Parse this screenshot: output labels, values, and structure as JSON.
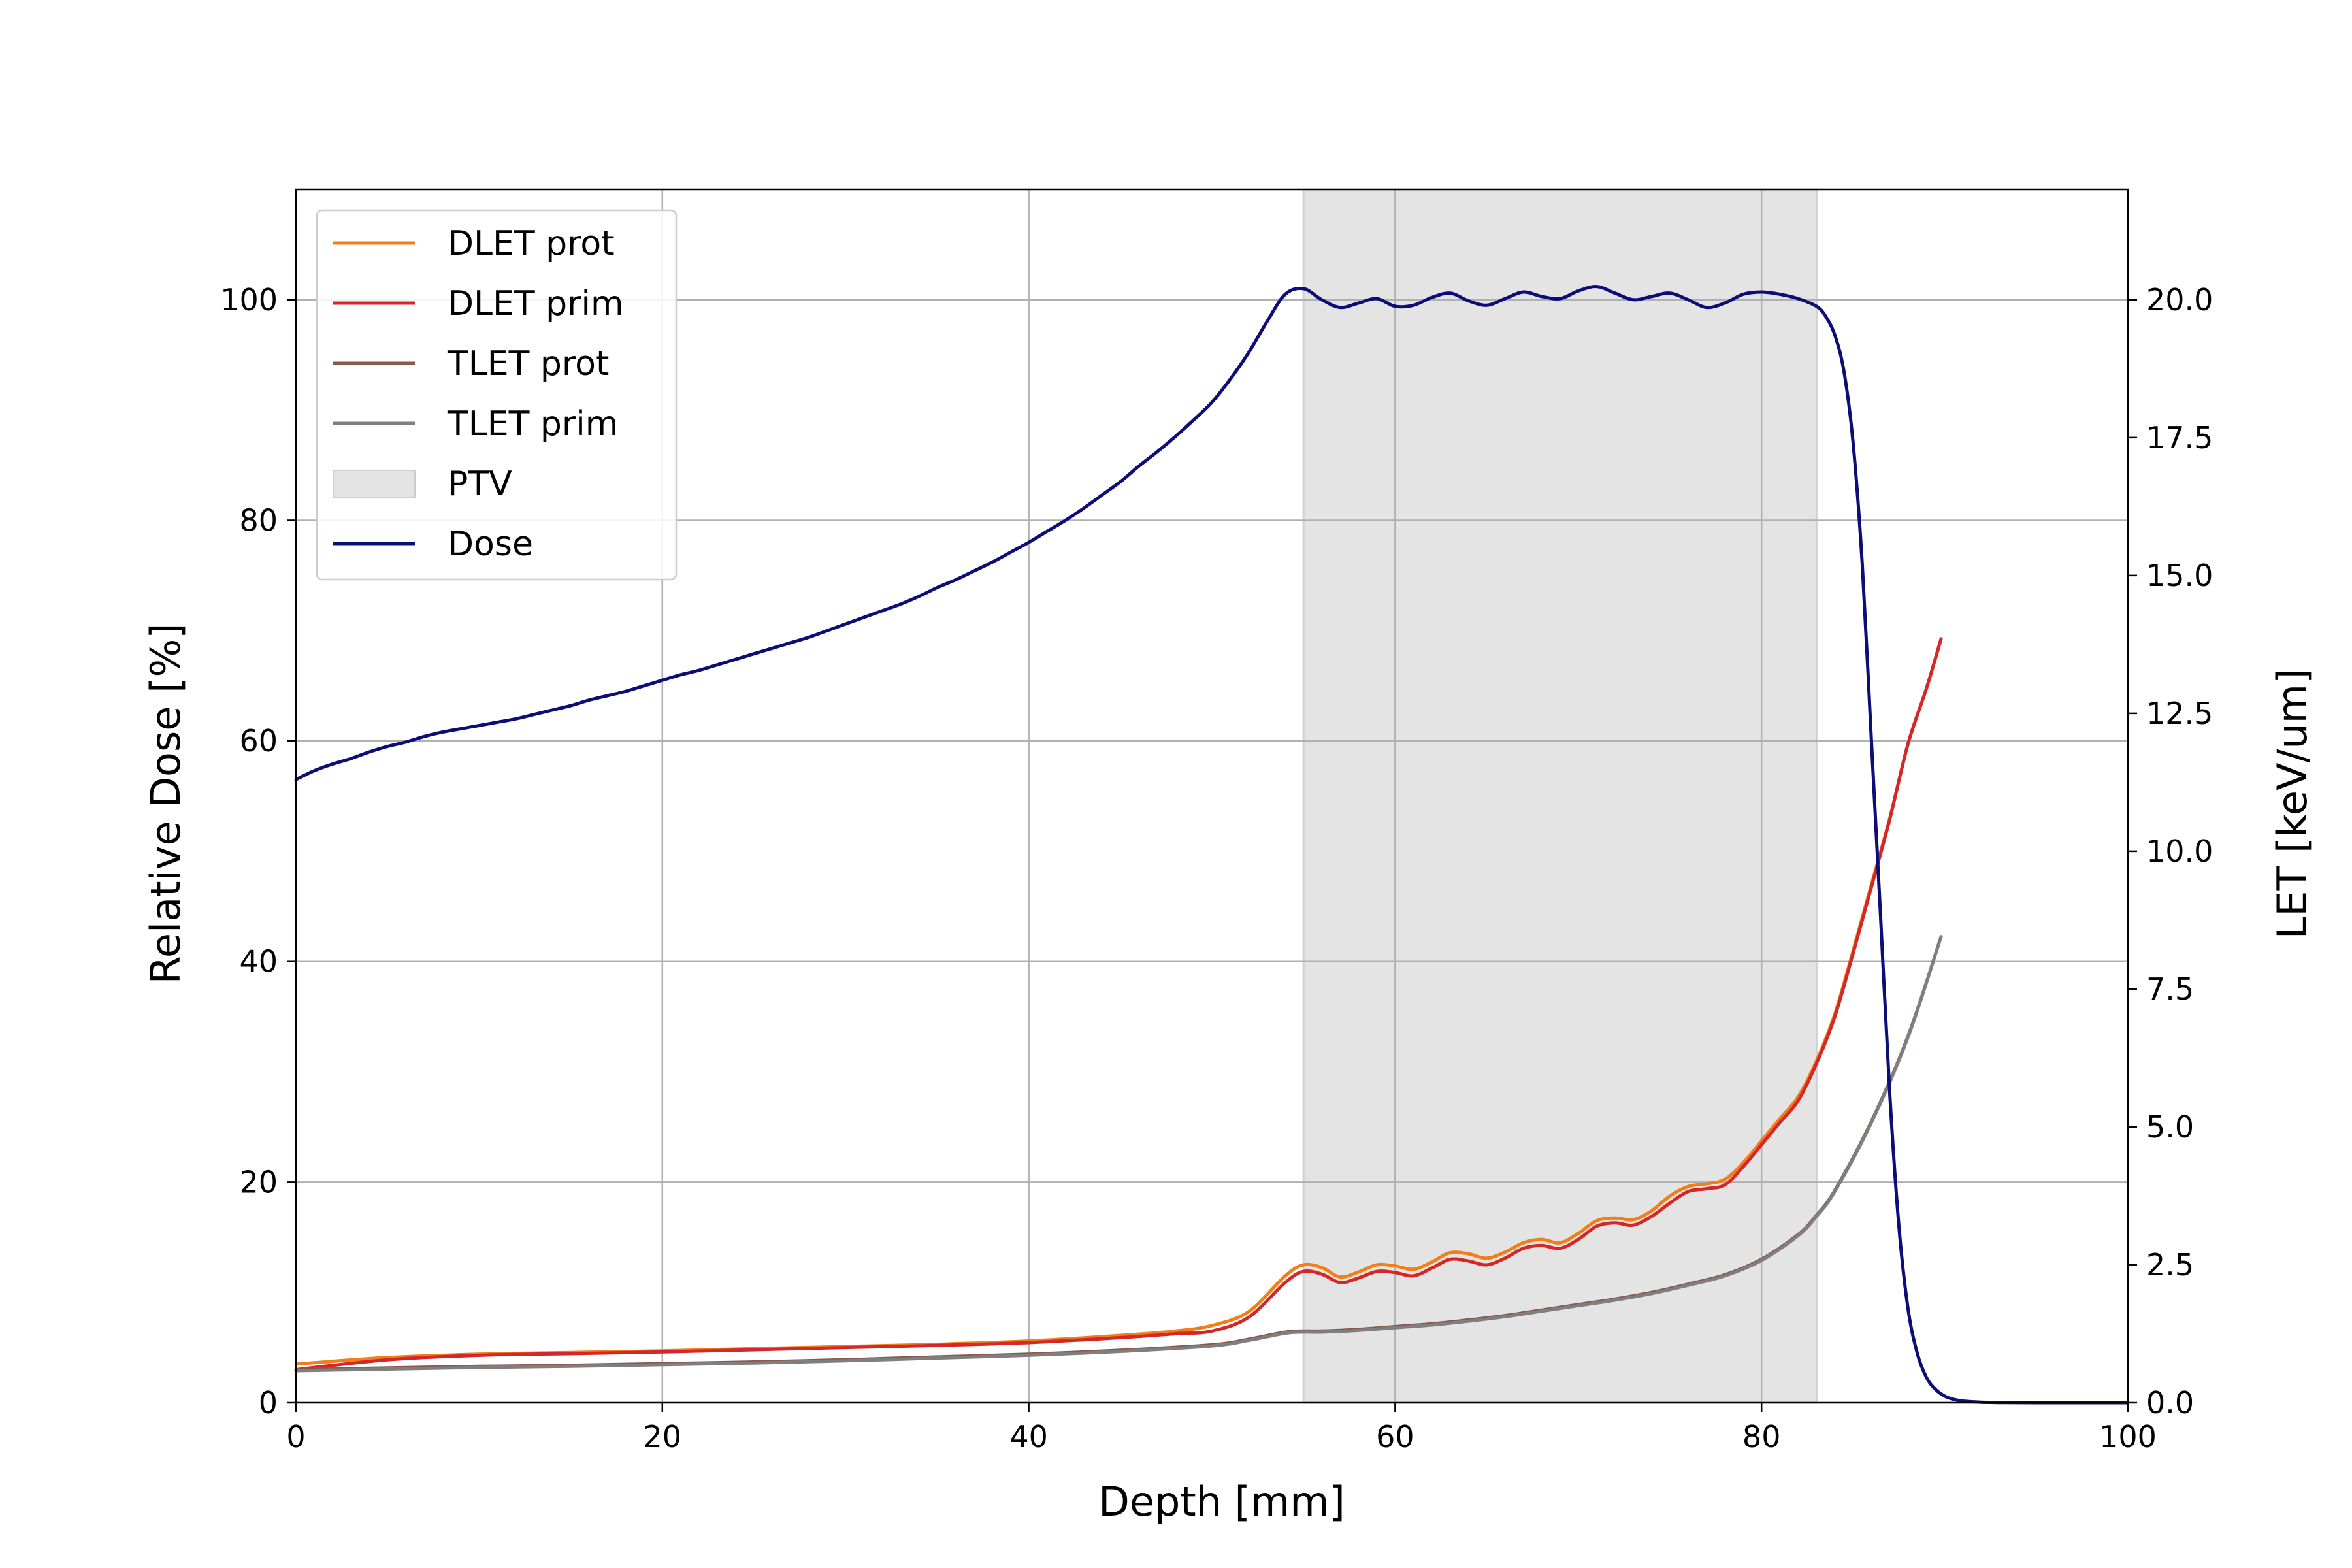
{
  "chart_data": {
    "type": "line",
    "title": "",
    "xlabel": "Depth [mm]",
    "ylabel": "Relative Dose [%]",
    "y2label": "LET [keV/um]",
    "xlim": [
      0,
      100
    ],
    "ylim": [
      0,
      110
    ],
    "y2lim": [
      0,
      22
    ],
    "xticks": [
      0,
      20,
      40,
      60,
      80,
      100
    ],
    "yticks": [
      0,
      20,
      40,
      60,
      80,
      100
    ],
    "y2ticks": [
      "0.0",
      "2.5",
      "5.0",
      "7.5",
      "10.0",
      "12.5",
      "15.0",
      "17.5",
      "20.0"
    ],
    "grid": true,
    "legend_position": "top-left",
    "ptv": {
      "name": "PTV",
      "x_range": [
        55,
        83
      ],
      "color": "#e4e4e4"
    },
    "series": [
      {
        "name": "DLET prot",
        "axis": "right",
        "color": "#f07f1a",
        "x": [
          0,
          5,
          10,
          15,
          20,
          25,
          30,
          35,
          40,
          45,
          48,
          50,
          52,
          54,
          55,
          56,
          57,
          58,
          59,
          60,
          61,
          62,
          63,
          64,
          65,
          66,
          67,
          68,
          69,
          70,
          71,
          72,
          73,
          74,
          75,
          76,
          77,
          78,
          79,
          80,
          81,
          82,
          83,
          84,
          85,
          86,
          87,
          88,
          89,
          89.8
        ],
        "y": [
          0.7,
          0.82,
          0.88,
          0.91,
          0.94,
          0.98,
          1.02,
          1.06,
          1.12,
          1.22,
          1.3,
          1.4,
          1.65,
          2.3,
          2.5,
          2.45,
          2.28,
          2.37,
          2.5,
          2.48,
          2.42,
          2.55,
          2.72,
          2.7,
          2.62,
          2.73,
          2.9,
          2.96,
          2.9,
          3.07,
          3.3,
          3.35,
          3.32,
          3.48,
          3.75,
          3.92,
          3.97,
          4.05,
          4.35,
          4.75,
          5.15,
          5.55,
          6.2,
          7.05,
          8.2,
          9.4,
          10.6,
          11.95,
          12.95,
          13.85
        ]
      },
      {
        "name": "DLET prim",
        "axis": "right",
        "color": "#d62728",
        "x": [
          0,
          5,
          10,
          15,
          20,
          25,
          30,
          35,
          40,
          45,
          48,
          50,
          52,
          54,
          55,
          56,
          57,
          58,
          59,
          60,
          61,
          62,
          63,
          64,
          65,
          66,
          67,
          68,
          69,
          70,
          71,
          72,
          73,
          74,
          75,
          76,
          77,
          78,
          79,
          80,
          81,
          82,
          83,
          84,
          85,
          86,
          87,
          88,
          89,
          89.8
        ],
        "y": [
          0.6,
          0.78,
          0.86,
          0.89,
          0.92,
          0.96,
          1.0,
          1.04,
          1.09,
          1.18,
          1.25,
          1.3,
          1.55,
          2.18,
          2.38,
          2.33,
          2.18,
          2.26,
          2.38,
          2.36,
          2.3,
          2.44,
          2.6,
          2.57,
          2.5,
          2.62,
          2.8,
          2.85,
          2.8,
          2.96,
          3.2,
          3.26,
          3.22,
          3.38,
          3.62,
          3.83,
          3.88,
          3.95,
          4.28,
          4.68,
          5.08,
          5.48,
          6.15,
          7.0,
          8.15,
          9.35,
          10.58,
          11.95,
          12.95,
          13.85
        ]
      },
      {
        "name": "TLET prot",
        "axis": "right",
        "color": "#8c564b",
        "x": [
          0,
          5,
          10,
          15,
          20,
          25,
          30,
          35,
          40,
          45,
          50,
          52,
          54,
          55,
          56,
          58,
          60,
          62,
          64,
          66,
          68,
          70,
          72,
          74,
          76,
          78,
          80,
          82,
          83,
          84,
          86,
          88,
          89.8
        ],
        "y": [
          0.6,
          0.63,
          0.66,
          0.68,
          0.71,
          0.74,
          0.78,
          0.83,
          0.88,
          0.95,
          1.05,
          1.15,
          1.28,
          1.3,
          1.3,
          1.33,
          1.38,
          1.43,
          1.5,
          1.58,
          1.68,
          1.78,
          1.88,
          2.0,
          2.15,
          2.32,
          2.6,
          3.05,
          3.4,
          3.85,
          5.1,
          6.65,
          8.45
        ]
      },
      {
        "name": "TLET prim",
        "axis": "right",
        "color": "#7f7f7f",
        "x": [
          0,
          5,
          10,
          15,
          20,
          25,
          30,
          35,
          40,
          45,
          50,
          52,
          54,
          55,
          56,
          58,
          60,
          62,
          64,
          66,
          68,
          70,
          72,
          74,
          76,
          78,
          80,
          82,
          83,
          84,
          86,
          88,
          89.8
        ],
        "y": [
          0.58,
          0.61,
          0.64,
          0.66,
          0.69,
          0.72,
          0.76,
          0.81,
          0.86,
          0.93,
          1.03,
          1.13,
          1.26,
          1.28,
          1.28,
          1.31,
          1.36,
          1.41,
          1.48,
          1.56,
          1.66,
          1.76,
          1.86,
          1.98,
          2.13,
          2.3,
          2.58,
          3.03,
          3.38,
          3.83,
          5.08,
          6.63,
          8.45
        ]
      },
      {
        "name": "Dose",
        "axis": "left",
        "color": "#0d0d7a",
        "x": [
          0,
          1,
          2,
          3,
          4,
          5,
          6,
          7,
          8,
          9,
          10,
          11,
          12,
          13,
          14,
          15,
          16,
          17,
          18,
          19,
          20,
          21,
          22,
          23,
          24,
          25,
          26,
          27,
          28,
          29,
          30,
          31,
          32,
          33,
          34,
          35,
          36,
          37,
          38,
          39,
          40,
          41,
          42,
          43,
          44,
          45,
          46,
          47,
          48,
          49,
          50,
          51,
          52,
          53,
          54,
          55,
          56,
          57,
          58,
          59,
          60,
          61,
          62,
          63,
          64,
          65,
          66,
          67,
          68,
          69,
          70,
          71,
          72,
          73,
          74,
          75,
          76,
          77,
          78,
          79,
          80,
          81,
          82,
          83,
          83.5,
          84,
          84.5,
          85,
          85.5,
          86,
          86.5,
          87,
          87.5,
          88,
          88.5,
          89,
          89.5,
          90,
          90.5,
          91,
          92,
          93,
          95,
          100
        ],
        "y": [
          56.5,
          57.3,
          57.9,
          58.4,
          59.0,
          59.5,
          59.9,
          60.4,
          60.8,
          61.1,
          61.4,
          61.7,
          62.0,
          62.4,
          62.8,
          63.2,
          63.7,
          64.1,
          64.5,
          65.0,
          65.5,
          66.0,
          66.4,
          66.9,
          67.4,
          67.9,
          68.4,
          68.9,
          69.4,
          70.0,
          70.6,
          71.2,
          71.8,
          72.4,
          73.1,
          73.9,
          74.6,
          75.4,
          76.2,
          77.1,
          78.0,
          79.0,
          80.0,
          81.1,
          82.3,
          83.5,
          84.9,
          86.2,
          87.6,
          89.1,
          90.7,
          92.8,
          95.2,
          98.0,
          100.5,
          101.0,
          100.0,
          99.3,
          99.7,
          100.1,
          99.4,
          99.5,
          100.2,
          100.6,
          99.9,
          99.5,
          100.1,
          100.7,
          100.3,
          100.1,
          100.8,
          101.2,
          100.6,
          100.0,
          100.3,
          100.6,
          100.0,
          99.3,
          99.7,
          100.5,
          100.7,
          100.5,
          100.1,
          99.4,
          98.5,
          96.8,
          93.5,
          87.0,
          76.0,
          60.0,
          44.0,
          28.0,
          16.0,
          8.5,
          4.5,
          2.3,
          1.2,
          0.6,
          0.3,
          0.15,
          0.05,
          0.02,
          0.0,
          0.0
        ]
      }
    ]
  }
}
